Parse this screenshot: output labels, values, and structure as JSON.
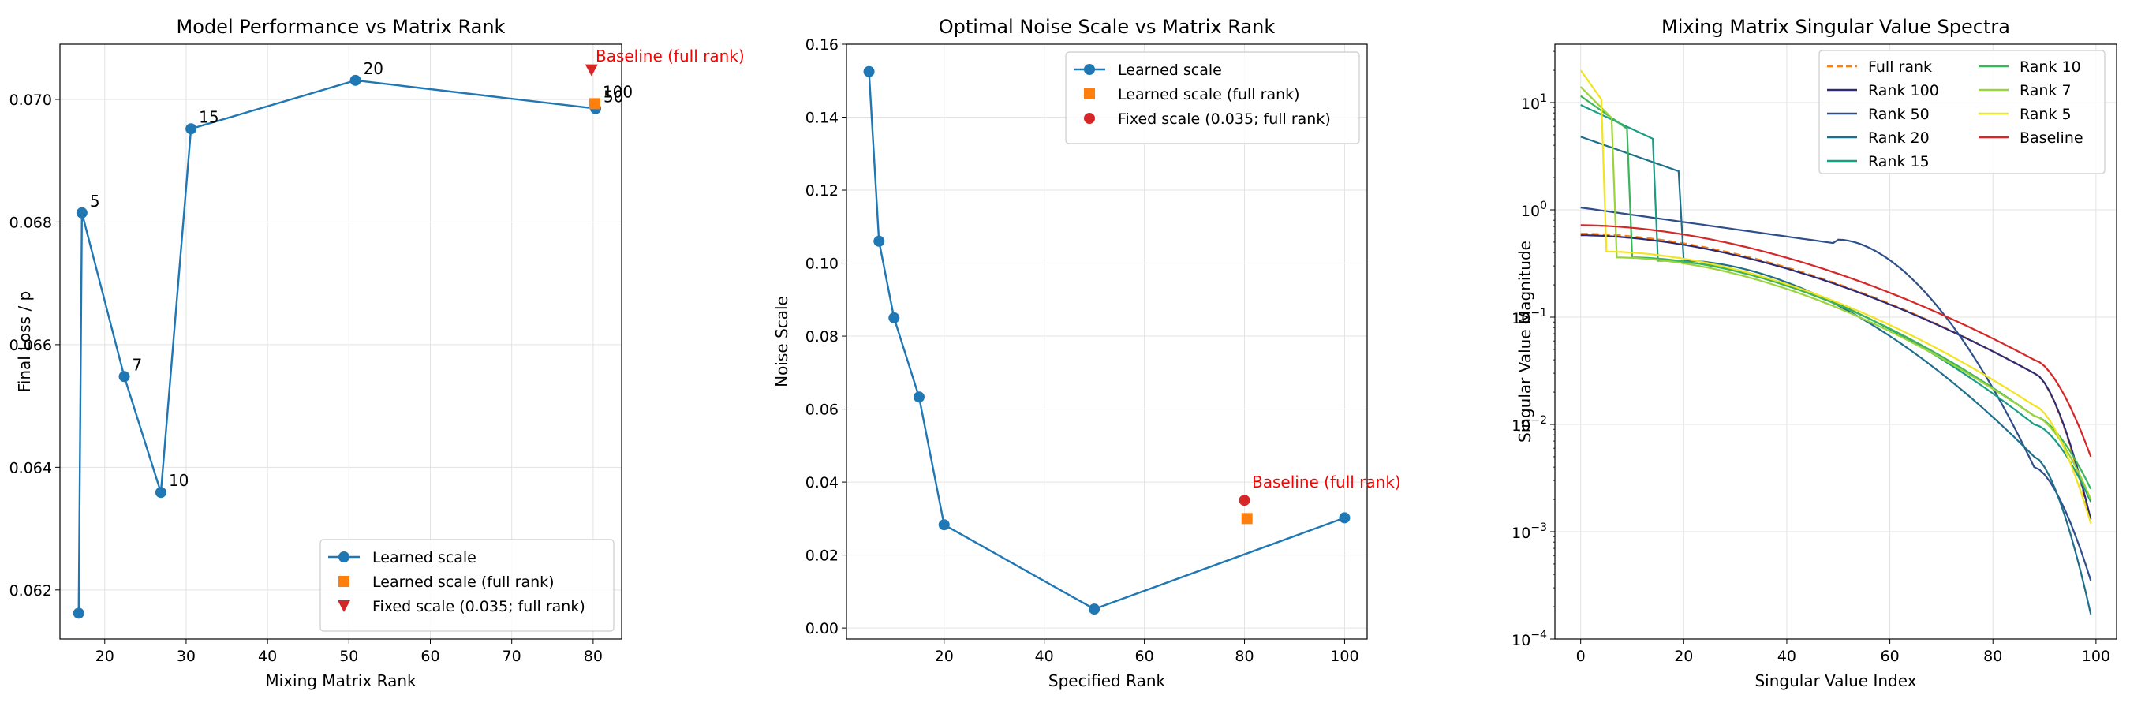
{
  "chart_data": [
    {
      "type": "line",
      "title": "Model Performance vs Matrix Rank",
      "xlabel": "Mixing Matrix Rank",
      "ylabel": "Final Loss / p",
      "xlim": [
        14.5,
        83.5
      ],
      "ylim": [
        0.0612,
        0.0709
      ],
      "xticks": [
        20,
        30,
        40,
        50,
        60,
        70,
        80
      ],
      "yticks": [
        0.062,
        0.064,
        0.066,
        0.068,
        0.07
      ],
      "ytick_labels": [
        "0.062",
        "0.064",
        "0.066",
        "0.068",
        "0.070"
      ],
      "grid": true,
      "legend_position": "lower right",
      "series": [
        {
          "name": "Learned scale",
          "color": "#1f77b4",
          "marker": "circle",
          "points": [
            {
              "x": 16.8,
              "y": 0.06162,
              "label": ""
            },
            {
              "x": 17.2,
              "y": 0.06815,
              "label": "5"
            },
            {
              "x": 22.4,
              "y": 0.06548,
              "label": "7"
            },
            {
              "x": 26.9,
              "y": 0.06359,
              "label": "10"
            },
            {
              "x": 30.6,
              "y": 0.06952,
              "label": "15"
            },
            {
              "x": 50.8,
              "y": 0.07031,
              "label": "20"
            },
            {
              "x": 80.3,
              "y": 0.06985,
              "label": "50"
            }
          ]
        },
        {
          "name": "Learned scale (full rank)",
          "color": "#ff7f0e",
          "marker": "square",
          "points": [
            {
              "x": 80.2,
              "y": 0.06993,
              "label": "100"
            }
          ]
        },
        {
          "name": "Fixed scale (0.035; full rank)",
          "color": "#d62728",
          "marker": "triangle-down",
          "points": [
            {
              "x": 79.8,
              "y": 0.07048,
              "label": ""
            }
          ]
        }
      ],
      "annotations": [
        {
          "text": "Baseline (full rank)",
          "x": 80.3,
          "y": 0.07062,
          "color": "#ff0000"
        }
      ]
    },
    {
      "type": "line",
      "title": "Optimal Noise Scale vs Matrix Rank",
      "xlabel": "Specified Rank",
      "ylabel": "Noise Scale",
      "xlim": [
        0.5,
        104.5
      ],
      "ylim": [
        -0.003,
        0.16
      ],
      "xticks": [
        20,
        40,
        60,
        80,
        100
      ],
      "yticks": [
        0.0,
        0.02,
        0.04,
        0.06,
        0.08,
        0.1,
        0.12,
        0.14,
        0.16
      ],
      "ytick_labels": [
        "0.00",
        "0.02",
        "0.04",
        "0.06",
        "0.08",
        "0.10",
        "0.12",
        "0.14",
        "0.16"
      ],
      "grid": true,
      "legend_position": "upper right",
      "series": [
        {
          "name": "Learned scale",
          "color": "#1f77b4",
          "marker": "circle",
          "points": [
            {
              "x": 5,
              "y": 0.1525
            },
            {
              "x": 7,
              "y": 0.106
            },
            {
              "x": 10,
              "y": 0.085
            },
            {
              "x": 15,
              "y": 0.0633
            },
            {
              "x": 20,
              "y": 0.0283
            },
            {
              "x": 50,
              "y": 0.0052
            },
            {
              "x": 100,
              "y": 0.0302
            }
          ]
        },
        {
          "name": "Learned scale (full rank)",
          "color": "#ff7f0e",
          "marker": "square",
          "points": [
            {
              "x": 80.5,
              "y": 0.03
            }
          ]
        },
        {
          "name": "Fixed scale (0.035; full rank)",
          "color": "#d62728",
          "marker": "circle",
          "points": [
            {
              "x": 80,
              "y": 0.035
            }
          ]
        }
      ],
      "annotations": [
        {
          "text": "Baseline (full rank)",
          "x": 81.5,
          "y": 0.0385,
          "color": "#ff0000"
        }
      ]
    },
    {
      "type": "line",
      "title": "Mixing Matrix Singular Value Spectra",
      "xlabel": "Singular Value Index",
      "ylabel": "Singular Value Magnitude",
      "xlim": [
        -5,
        104
      ],
      "ylim": [
        0.0001,
        35
      ],
      "y_scale": "log",
      "xticks": [
        0,
        20,
        40,
        60,
        80,
        100
      ],
      "yticks": [
        0.0001,
        0.001,
        0.01,
        0.1,
        1,
        10
      ],
      "ytick_labels": [
        "10^-4",
        "10^-3",
        "10^-2",
        "10^-1",
        "10^0",
        "10^1"
      ],
      "grid": true,
      "legend_position": "upper right",
      "legend_columns": 2,
      "series": [
        {
          "name": "Full rank",
          "color": "#ff7f0e",
          "dashed": true,
          "start": 0.6,
          "mid": 0.2,
          "end_knee": 0.03,
          "last": 0.0012,
          "rank": 0
        },
        {
          "name": "Rank 100",
          "color": "#2f2a74",
          "start": 0.58,
          "mid": 0.19,
          "end_knee": 0.03,
          "last": 0.0013,
          "rank": 0
        },
        {
          "name": "Rank 50",
          "color": "#2f4f8a",
          "start": 1.05,
          "mid": 0.22,
          "end_knee": 0.004,
          "last": 0.00035,
          "rank": 50
        },
        {
          "name": "Rank 20",
          "color": "#1f6f8b",
          "start": 4.8,
          "mid": 0.14,
          "end_knee": 0.005,
          "last": 0.00017,
          "rank": 20
        },
        {
          "name": "Rank 15",
          "color": "#189e86",
          "start": 9.5,
          "mid": 0.14,
          "end_knee": 0.01,
          "last": 0.0019,
          "rank": 15
        },
        {
          "name": "Rank 10",
          "color": "#3cb45a",
          "start": 11.5,
          "mid": 0.15,
          "end_knee": 0.012,
          "last": 0.0025,
          "rank": 10
        },
        {
          "name": "Rank 7",
          "color": "#9bd33a",
          "start": 14,
          "mid": 0.15,
          "end_knee": 0.012,
          "last": 0.002,
          "rank": 7
        },
        {
          "name": "Rank 5",
          "color": "#f2e41e",
          "start": 20,
          "mid": 0.17,
          "end_knee": 0.015,
          "last": 0.0012,
          "rank": 5
        },
        {
          "name": "Baseline",
          "color": "#d62728",
          "start": 0.72,
          "mid": 0.24,
          "end_knee": 0.04,
          "last": 0.005,
          "rank": 0
        }
      ]
    }
  ]
}
